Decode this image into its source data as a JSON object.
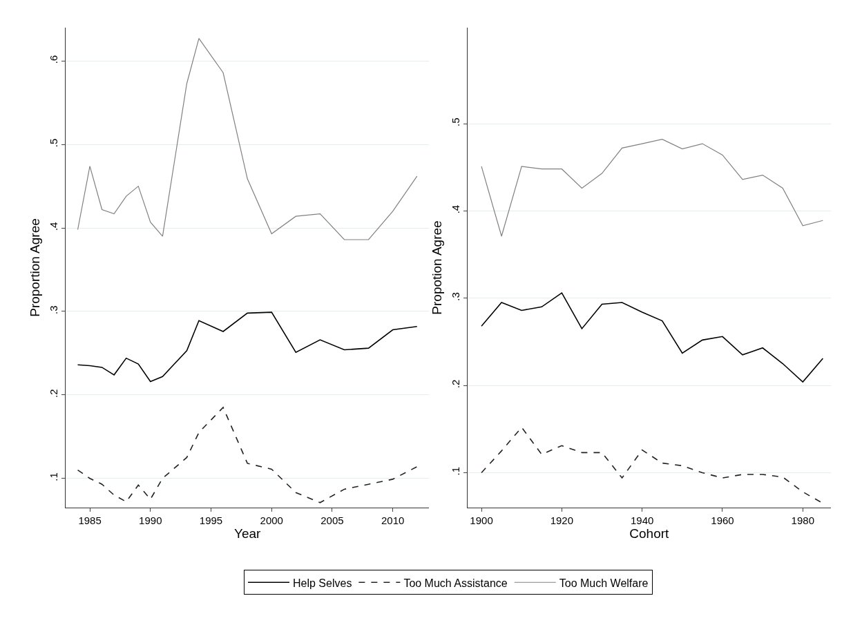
{
  "chart_data": [
    {
      "type": "line",
      "xlabel": "Year",
      "ylabel": "Proportion Agree",
      "xlim": [
        1983,
        2013
      ],
      "xticks": [
        1985,
        1990,
        1995,
        2000,
        2005,
        2010
      ],
      "ylim": [
        0.065,
        0.64
      ],
      "yticks": [
        {
          "value": 0.1,
          "label": ".1"
        },
        {
          "value": 0.2,
          "label": ".2"
        },
        {
          "value": 0.3,
          "label": ".3"
        },
        {
          "value": 0.4,
          "label": ".4"
        },
        {
          "value": 0.5,
          "label": ".5"
        },
        {
          "value": 0.6,
          "label": ".6"
        }
      ],
      "grid": "y",
      "legend": "bottom",
      "x": [
        1984,
        1985,
        1986,
        1987,
        1988,
        1989,
        1990,
        1991,
        1993,
        1994,
        1996,
        1998,
        2000,
        2002,
        2004,
        2006,
        2008,
        2010,
        2012
      ],
      "series": [
        {
          "name": "Help Selves",
          "color": "#000000",
          "line_style": "solid",
          "values": [
            0.236,
            0.235,
            0.233,
            0.224,
            0.244,
            0.237,
            0.216,
            0.222,
            0.253,
            0.289,
            0.276,
            0.298,
            0.299,
            0.251,
            0.266,
            0.254,
            0.256,
            0.278,
            0.282
          ]
        },
        {
          "name": "Too Much Assistance",
          "color": "#222222",
          "line_style": "dashed",
          "values": [
            0.11,
            0.1,
            0.093,
            0.08,
            0.072,
            0.092,
            0.075,
            0.1,
            0.125,
            0.155,
            0.185,
            0.118,
            0.111,
            0.083,
            0.071,
            0.087,
            0.093,
            0.099,
            0.114
          ]
        },
        {
          "name": "Too Much Welfare",
          "color": "#808080",
          "line_style": "solid",
          "values": [
            0.398,
            0.474,
            0.422,
            0.417,
            0.438,
            0.45,
            0.407,
            0.39,
            0.573,
            0.627,
            0.586,
            0.459,
            0.393,
            0.414,
            0.417,
            0.386,
            0.386,
            0.42,
            0.462
          ]
        }
      ]
    },
    {
      "type": "line",
      "xlabel": "Cohort",
      "ylabel": "Propotion Agree",
      "xlim": [
        1896.5,
        1987
      ],
      "xticks": [
        1900,
        1920,
        1940,
        1960,
        1980
      ],
      "ylim": [
        0.06,
        0.61
      ],
      "yticks": [
        {
          "value": 0.1,
          "label": ".1"
        },
        {
          "value": 0.2,
          "label": ".2"
        },
        {
          "value": 0.3,
          "label": ".3"
        },
        {
          "value": 0.4,
          "label": ".4"
        },
        {
          "value": 0.5,
          "label": ".5"
        }
      ],
      "grid": "y",
      "x": [
        1900,
        1905,
        1910,
        1915,
        1920,
        1925,
        1930,
        1935,
        1940,
        1945,
        1950,
        1955,
        1960,
        1965,
        1970,
        1975,
        1980,
        1985
      ],
      "series": [
        {
          "color": "#000000",
          "line_style": "solid",
          "values": [
            0.268,
            0.295,
            0.286,
            0.29,
            0.306,
            0.265,
            0.293,
            0.295,
            0.284,
            0.274,
            0.237,
            0.252,
            0.256,
            0.235,
            0.243,
            0.225,
            0.204,
            0.231
          ]
        },
        {
          "color": "#222222",
          "line_style": "dashed",
          "values": [
            0.1,
            0.125,
            0.152,
            0.121,
            0.131,
            0.123,
            0.123,
            0.094,
            0.126,
            0.111,
            0.108,
            0.1,
            0.094,
            0.098,
            0.098,
            0.095,
            0.078,
            0.065
          ]
        },
        {
          "color": "#808080",
          "line_style": "solid",
          "values": [
            0.451,
            0.371,
            0.451,
            0.448,
            0.448,
            0.426,
            0.443,
            0.472,
            0.477,
            0.482,
            0.471,
            0.477,
            0.464,
            0.436,
            0.441,
            0.426,
            0.383,
            0.389
          ]
        }
      ]
    }
  ]
}
